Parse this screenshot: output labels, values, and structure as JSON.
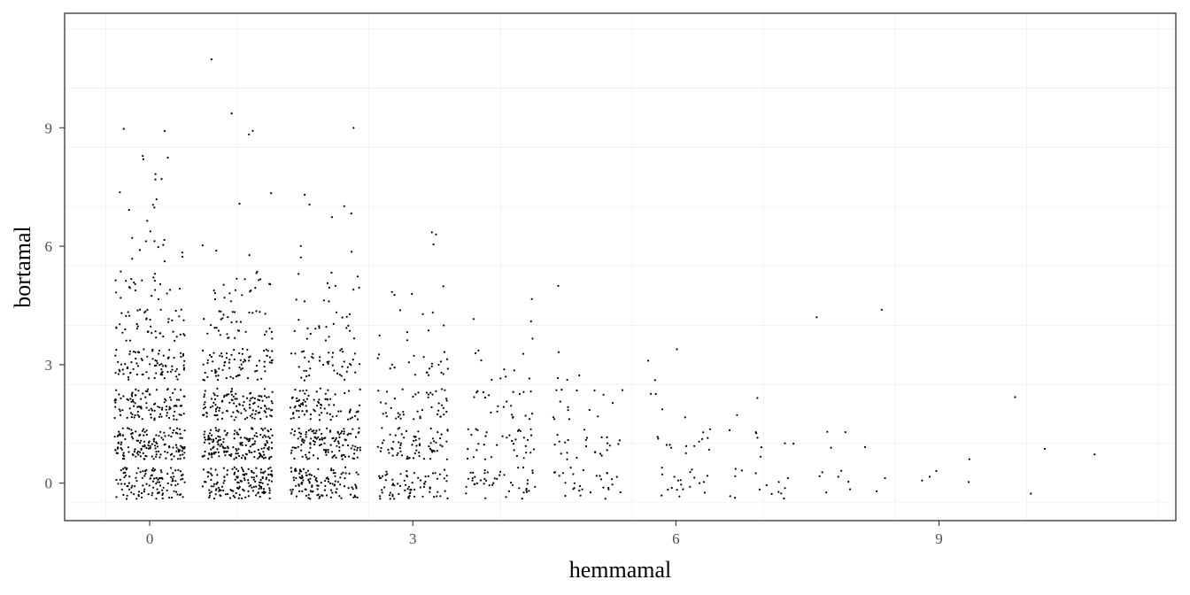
{
  "chart_data": {
    "type": "scatter",
    "title": "",
    "xlabel": "hemmamal",
    "ylabel": "bortamal",
    "xlim": [
      -0.97,
      11.7
    ],
    "ylim": [
      -0.95,
      11.9
    ],
    "x_ticks": [
      0,
      3,
      6,
      9
    ],
    "y_ticks": [
      0,
      3,
      6,
      9
    ],
    "x_tick_labels": [
      "0",
      "3",
      "6",
      "9"
    ],
    "y_tick_labels": [
      "0",
      "3",
      "6",
      "9"
    ],
    "grid": true,
    "theme": "bw",
    "jitter": 0.4,
    "point_color": "#000000",
    "legend": "none",
    "cells": [
      {
        "x": 0,
        "y": 0,
        "n": 120
      },
      {
        "x": 0,
        "y": 1,
        "n": 150
      },
      {
        "x": 0,
        "y": 2,
        "n": 110
      },
      {
        "x": 0,
        "y": 3,
        "n": 85
      },
      {
        "x": 0,
        "y": 4,
        "n": 45
      },
      {
        "x": 0,
        "y": 5,
        "n": 22
      },
      {
        "x": 0,
        "y": 6,
        "n": 12
      },
      {
        "x": 0,
        "y": 7,
        "n": 6
      },
      {
        "x": 0,
        "y": 8,
        "n": 6
      },
      {
        "x": 0,
        "y": 9,
        "n": 2
      },
      {
        "x": 1,
        "y": 0,
        "n": 150
      },
      {
        "x": 1,
        "y": 1,
        "n": 170
      },
      {
        "x": 1,
        "y": 2,
        "n": 120
      },
      {
        "x": 1,
        "y": 3,
        "n": 80
      },
      {
        "x": 1,
        "y": 4,
        "n": 35
      },
      {
        "x": 1,
        "y": 5,
        "n": 20
      },
      {
        "x": 1,
        "y": 6,
        "n": 3
      },
      {
        "x": 1,
        "y": 7,
        "n": 2
      },
      {
        "x": 1,
        "y": 9,
        "n": 3
      },
      {
        "x": 1,
        "y": 11,
        "n": 1
      },
      {
        "x": 2,
        "y": 0,
        "n": 120
      },
      {
        "x": 2,
        "y": 1,
        "n": 130
      },
      {
        "x": 2,
        "y": 2,
        "n": 85
      },
      {
        "x": 2,
        "y": 3,
        "n": 45
      },
      {
        "x": 2,
        "y": 4,
        "n": 20
      },
      {
        "x": 2,
        "y": 5,
        "n": 12
      },
      {
        "x": 2,
        "y": 6,
        "n": 3
      },
      {
        "x": 2,
        "y": 7,
        "n": 5
      },
      {
        "x": 2,
        "y": 9,
        "n": 1
      },
      {
        "x": 3,
        "y": 0,
        "n": 75
      },
      {
        "x": 3,
        "y": 1,
        "n": 70
      },
      {
        "x": 3,
        "y": 2,
        "n": 45
      },
      {
        "x": 3,
        "y": 3,
        "n": 22
      },
      {
        "x": 3,
        "y": 4,
        "n": 8
      },
      {
        "x": 3,
        "y": 5,
        "n": 4
      },
      {
        "x": 3,
        "y": 6,
        "n": 3
      },
      {
        "x": 4,
        "y": 0,
        "n": 45
      },
      {
        "x": 4,
        "y": 1,
        "n": 35
      },
      {
        "x": 4,
        "y": 2,
        "n": 22
      },
      {
        "x": 4,
        "y": 3,
        "n": 10
      },
      {
        "x": 4,
        "y": 4,
        "n": 3
      },
      {
        "x": 4,
        "y": 5,
        "n": 1
      },
      {
        "x": 5,
        "y": 0,
        "n": 30
      },
      {
        "x": 5,
        "y": 1,
        "n": 24
      },
      {
        "x": 5,
        "y": 2,
        "n": 15
      },
      {
        "x": 5,
        "y": 3,
        "n": 4
      },
      {
        "x": 5,
        "y": 5,
        "n": 1
      },
      {
        "x": 6,
        "y": 0,
        "n": 20
      },
      {
        "x": 6,
        "y": 1,
        "n": 14
      },
      {
        "x": 6,
        "y": 2,
        "n": 4
      },
      {
        "x": 6,
        "y": 3,
        "n": 3
      },
      {
        "x": 7,
        "y": 0,
        "n": 15
      },
      {
        "x": 7,
        "y": 1,
        "n": 8
      },
      {
        "x": 7,
        "y": 2,
        "n": 2
      },
      {
        "x": 8,
        "y": 0,
        "n": 9
      },
      {
        "x": 8,
        "y": 1,
        "n": 4
      },
      {
        "x": 8,
        "y": 4,
        "n": 2
      },
      {
        "x": 9,
        "y": 0,
        "n": 4
      },
      {
        "x": 9,
        "y": 1,
        "n": 1
      },
      {
        "x": 10,
        "y": 0,
        "n": 1
      },
      {
        "x": 10,
        "y": 1,
        "n": 1
      },
      {
        "x": 10,
        "y": 2,
        "n": 1
      },
      {
        "x": 11,
        "y": 1,
        "n": 1
      }
    ]
  }
}
